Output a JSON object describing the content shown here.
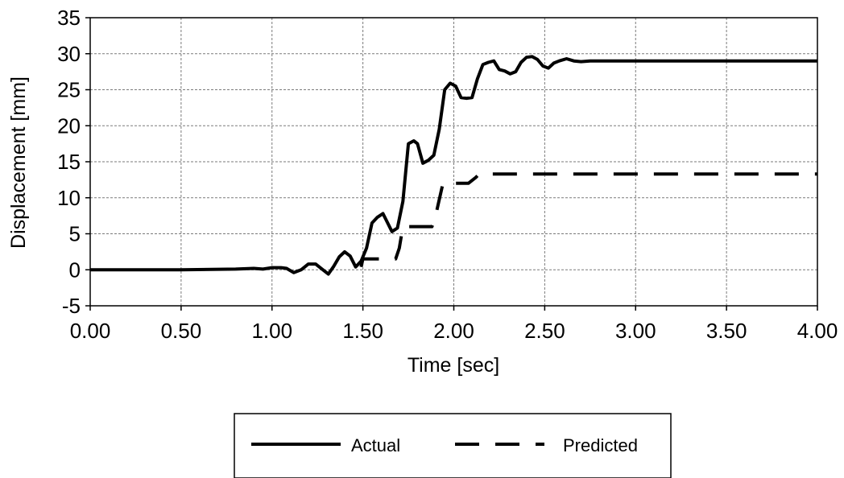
{
  "chart_data": {
    "type": "line",
    "title": "",
    "xlabel": "Time [sec]",
    "ylabel": "Displacement [mm]",
    "xlim": [
      0,
      4
    ],
    "ylim": [
      -5,
      35
    ],
    "xticks": [
      "0.00",
      "0.50",
      "1.00",
      "1.50",
      "2.00",
      "2.50",
      "3.00",
      "3.50",
      "4.00"
    ],
    "yticks": [
      "-5",
      "0",
      "5",
      "10",
      "15",
      "20",
      "25",
      "30",
      "35"
    ],
    "grid": true,
    "legend_position": "bottom",
    "series": [
      {
        "name": "Actual",
        "style": "solid",
        "color": "#000000",
        "x": [
          0,
          0.5,
          0.8,
          0.9,
          0.95,
          1.0,
          1.05,
          1.08,
          1.12,
          1.16,
          1.2,
          1.24,
          1.28,
          1.31,
          1.34,
          1.37,
          1.4,
          1.43,
          1.46,
          1.49,
          1.52,
          1.55,
          1.58,
          1.61,
          1.63,
          1.66,
          1.69,
          1.72,
          1.75,
          1.78,
          1.8,
          1.83,
          1.86,
          1.89,
          1.92,
          1.95,
          1.98,
          2.01,
          2.04,
          2.07,
          2.1,
          2.13,
          2.16,
          2.19,
          2.22,
          2.25,
          2.28,
          2.31,
          2.34,
          2.37,
          2.4,
          2.43,
          2.46,
          2.49,
          2.52,
          2.55,
          2.58,
          2.62,
          2.66,
          2.7,
          2.75,
          2.8,
          3.0,
          3.5,
          4.0
        ],
        "y": [
          0,
          0,
          0.1,
          0.2,
          0.1,
          0.3,
          0.3,
          0.2,
          -0.4,
          0,
          0.8,
          0.8,
          0,
          -0.6,
          0.5,
          1.8,
          2.5,
          1.9,
          0.4,
          1.2,
          3.0,
          6.5,
          7.3,
          7.8,
          6.8,
          5.3,
          5.8,
          9.5,
          17.5,
          17.9,
          17.5,
          14.8,
          15.2,
          15.9,
          19.5,
          25.0,
          25.9,
          25.5,
          23.9,
          23.8,
          23.9,
          26.5,
          28.5,
          28.8,
          29.0,
          27.8,
          27.6,
          27.2,
          27.5,
          28.8,
          29.5,
          29.6,
          29.2,
          28.3,
          28.0,
          28.7,
          29.0,
          29.3,
          29.0,
          28.9,
          29.0,
          29.0,
          29.0,
          29.0,
          29.0
        ]
      },
      {
        "name": "Predicted",
        "style": "dashed",
        "color": "#000000",
        "x": [
          1.49,
          1.5,
          1.68,
          1.7,
          1.72,
          1.88,
          1.9,
          1.94,
          1.95,
          2.08,
          2.12,
          2.14,
          3.0,
          4.0
        ],
        "y": [
          0.4,
          1.5,
          1.5,
          3.0,
          6.0,
          6.0,
          7.5,
          12.0,
          12.0,
          12.0,
          12.8,
          13.3,
          13.3,
          13.3
        ]
      }
    ]
  }
}
